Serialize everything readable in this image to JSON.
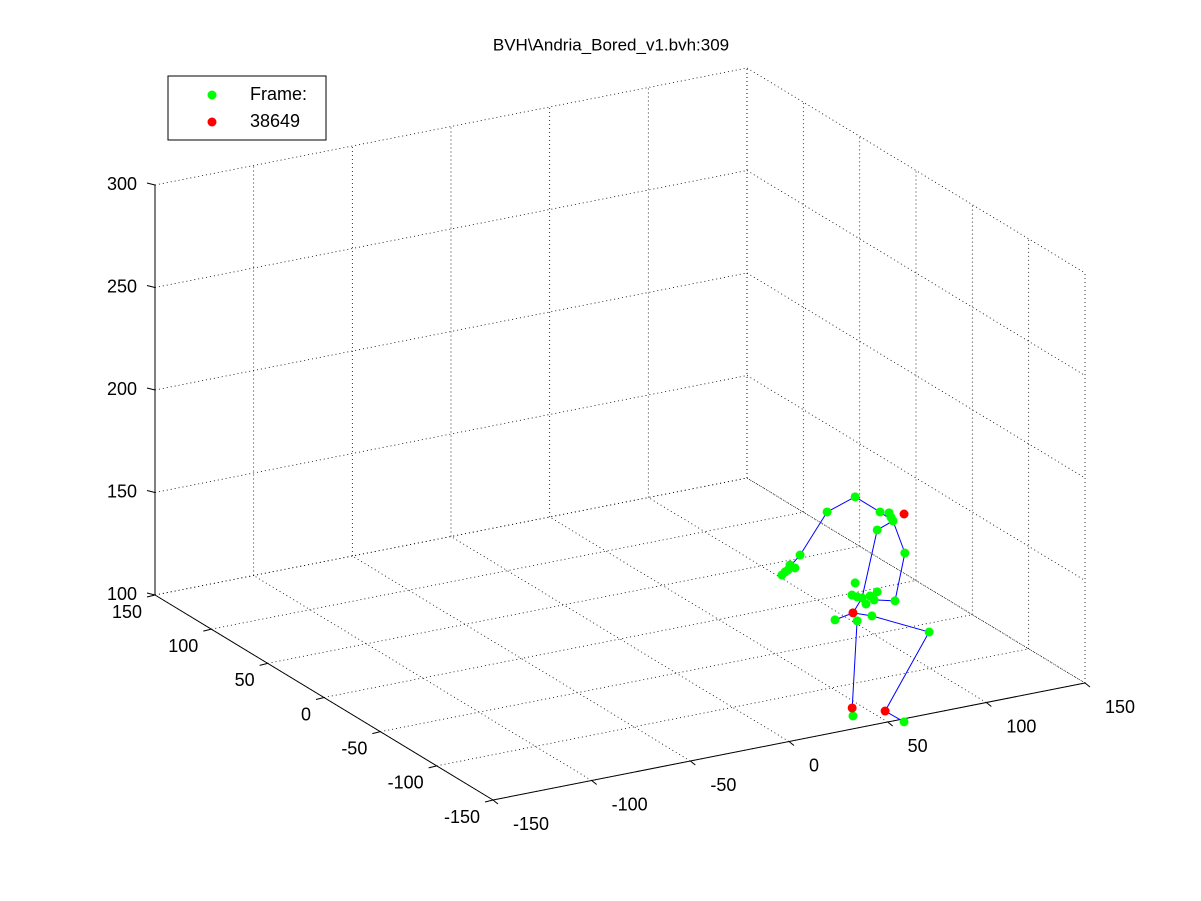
{
  "chart_data": {
    "type": "scatter3d",
    "title": "BVH\\Andria_Bored_v1.bvh:309",
    "xlim": [
      -150,
      150
    ],
    "ylim": [
      -150,
      150
    ],
    "zlim": [
      100,
      300
    ],
    "xticks": [
      -150,
      -100,
      -50,
      0,
      50,
      100,
      150
    ],
    "yticks": [
      -150,
      -100,
      -50,
      0,
      50,
      100,
      150
    ],
    "zticks": [
      100,
      150,
      200,
      250,
      300
    ],
    "grid": true,
    "legend": "upper left",
    "series": [
      {
        "type": "line",
        "color": "#0000ff",
        "x": [
          10.0,
          17.6,
          31.3,
          45.5,
          58.1,
          64.7,
          70.7,
          65.7,
          55.1,
          null,
          64.7,
          56.7,
          49.0,
          44.4,
          46.5,
          44.0,
          44.4,
          null,
          35.3,
          44.4,
          54.0,
          83.0,
          60.7,
          70.3
        ],
        "y": [
          -129,
          -129,
          -129,
          -129,
          -129,
          -129,
          -129,
          -129,
          -129,
          null,
          -129,
          -129,
          -129,
          -129,
          -129,
          -129,
          -129,
          null,
          -129,
          -129,
          -129,
          -129,
          -129,
          -129
        ],
        "z": [
          173.8,
          180.6,
          199,
          203.7,
          193.9,
          188.3,
          171.5,
          149.1,
          151.6,
          null,
          188.3,
          185.4,
          153.7,
          147.3,
          143,
          101,
          97,
          null,
          145.6,
          147.3,
          144,
          130.6,
          96.3,
          89.2
        ]
      },
      {
        "type": "scatter",
        "name": "Frame:",
        "color": "#00ff00",
        "x": [
          45.5,
          31.3,
          58.1,
          62.7,
          64.7,
          63.6,
          70.7,
          56.7,
          17.6,
          12.5,
          10.0,
          8.4,
          11.5,
          15.0,
          45.5,
          43.9,
          46.5,
          49.0,
          53.1,
          56.7,
          55.1,
          51.0,
          65.7,
          35.3,
          46.5,
          54.0,
          83.0,
          44.4,
          70.3
        ],
        "y": [
          -129,
          -129,
          -129,
          -129,
          -129,
          -129,
          -129,
          -129,
          -129,
          -129,
          -129,
          -129,
          -129,
          -129,
          -129,
          -129,
          -129,
          -129,
          -129,
          -129,
          -129,
          -129,
          -129,
          -129,
          -129,
          -129,
          -129,
          -129,
          -129
        ],
        "z": [
          203.7,
          199,
          193.9,
          192.6,
          188.3,
          190.4,
          171.5,
          185.4,
          180.6,
          176.7,
          173.8,
          172.6,
          174.5,
          174.8,
          161.7,
          156.1,
          154.7,
          153.7,
          153.9,
          155.2,
          151.6,
          150.4,
          149.1,
          145.6,
          143,
          144,
          130.6,
          97,
          89.2
        ]
      },
      {
        "type": "scatter",
        "name": "38649",
        "color": "#ff0000",
        "x": [
          70.3,
          44.4,
          44.0,
          60.7
        ],
        "y": [
          -129,
          -129,
          -129,
          -129
        ],
        "z": [
          190.6,
          147.3,
          101,
          96.3
        ]
      }
    ]
  }
}
